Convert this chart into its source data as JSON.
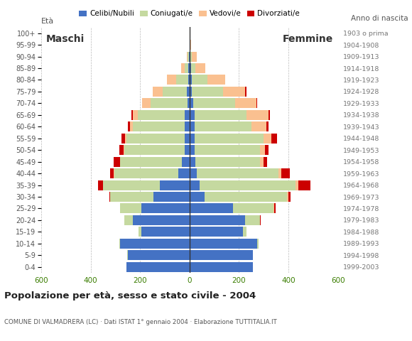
{
  "age_groups": [
    "0-4",
    "5-9",
    "10-14",
    "15-19",
    "20-24",
    "25-29",
    "30-34",
    "35-39",
    "40-44",
    "45-49",
    "50-54",
    "55-59",
    "60-64",
    "65-69",
    "70-74",
    "75-79",
    "80-84",
    "85-89",
    "90-94",
    "95-99",
    "100+"
  ],
  "birth_years": [
    "1999-2003",
    "1994-1998",
    "1989-1993",
    "1984-1988",
    "1979-1983",
    "1974-1978",
    "1969-1973",
    "1964-1968",
    "1959-1963",
    "1954-1958",
    "1949-1953",
    "1944-1948",
    "1939-1943",
    "1934-1938",
    "1929-1933",
    "1924-1928",
    "1919-1923",
    "1914-1918",
    "1909-1913",
    "1904-1908",
    "1903 o prima"
  ],
  "males": {
    "celibe": [
      255,
      250,
      280,
      195,
      230,
      195,
      145,
      120,
      45,
      30,
      20,
      20,
      20,
      20,
      8,
      10,
      5,
      5,
      2,
      0,
      0
    ],
    "coniugato": [
      0,
      2,
      5,
      10,
      35,
      85,
      175,
      230,
      260,
      250,
      245,
      235,
      210,
      190,
      150,
      100,
      50,
      15,
      5,
      0,
      0
    ],
    "vedovo": [
      0,
      0,
      0,
      0,
      0,
      0,
      0,
      0,
      2,
      2,
      3,
      5,
      10,
      20,
      35,
      40,
      35,
      15,
      5,
      0,
      0
    ],
    "divorziato": [
      0,
      0,
      0,
      0,
      0,
      0,
      5,
      20,
      15,
      25,
      15,
      15,
      10,
      5,
      0,
      0,
      0,
      0,
      0,
      0,
      0
    ]
  },
  "females": {
    "nubile": [
      255,
      255,
      275,
      215,
      225,
      175,
      60,
      40,
      30,
      25,
      20,
      20,
      20,
      20,
      15,
      10,
      8,
      5,
      3,
      2,
      0
    ],
    "coniugata": [
      0,
      2,
      5,
      15,
      60,
      165,
      335,
      390,
      330,
      260,
      265,
      280,
      230,
      210,
      170,
      125,
      65,
      20,
      5,
      0,
      0
    ],
    "vedova": [
      0,
      0,
      0,
      0,
      0,
      2,
      5,
      10,
      12,
      15,
      20,
      30,
      60,
      90,
      85,
      90,
      70,
      40,
      20,
      3,
      2
    ],
    "divorziata": [
      0,
      0,
      0,
      0,
      2,
      5,
      10,
      50,
      35,
      15,
      15,
      25,
      10,
      5,
      5,
      5,
      0,
      0,
      0,
      0,
      0
    ]
  },
  "colors": {
    "celibe": "#4472C4",
    "coniugato": "#C5D9A0",
    "vedovo": "#FAC090",
    "divorziato": "#CC0000"
  },
  "title": "Popolazione per età, sesso e stato civile - 2004",
  "subtitle": "COMUNE DI VALMADRERA (LC) · Dati ISTAT 1° gennaio 2004 · Elaborazione TUTTITALIA.IT",
  "xlim": 600,
  "ylabel_left": "Età",
  "ylabel_right": "Anno di nascita",
  "legend_labels": [
    "Celibi/Nubili",
    "Coniugati/e",
    "Vedovi/e",
    "Divorziati/e"
  ],
  "background_color": "#ffffff",
  "bar_height": 0.85,
  "maschi_label": "Maschi",
  "femmine_label": "Femmine"
}
